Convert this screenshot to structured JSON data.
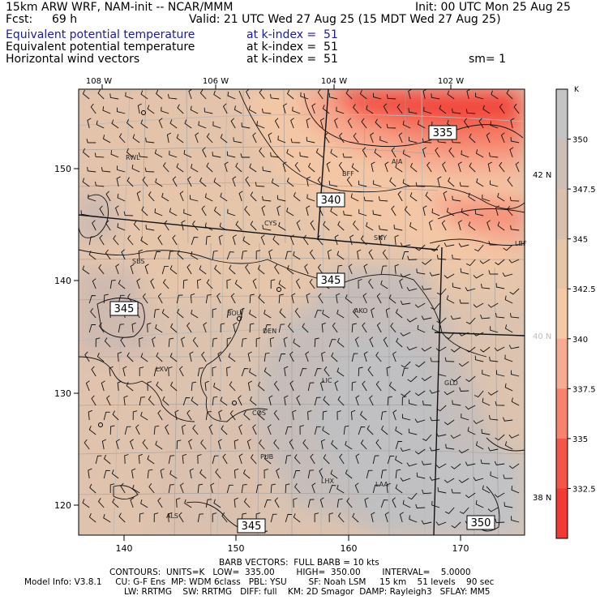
{
  "header": {
    "model": "15km ARW WRF, NAM-init -- NCAR/MMM",
    "init": "Init: 00 UTC Mon 25 Aug 25",
    "fcst_label": "Fcst:",
    "fcst_value": "69 h",
    "valid": "Valid: 21 UTC Wed 27 Aug 25 (15 MDT Wed 27 Aug 25)",
    "fields": [
      {
        "name": "Equivalent potential temperature",
        "level": "at k-index =  51"
      },
      {
        "name": "Equivalent potential temperature",
        "level": "at k-index =  51"
      },
      {
        "name": "Horizontal wind vectors",
        "level": "at k-index =  51"
      }
    ],
    "smoothing": "sm= 1"
  },
  "top_lon_labels": [
    "108 W",
    "106 W",
    "104 W",
    "102 W"
  ],
  "right_lat_labels": [
    "42 N",
    "40 N",
    "38 N"
  ],
  "x_ticks": [
    "140",
    "150",
    "160",
    "170"
  ],
  "y_ticks": [
    "150",
    "140",
    "130",
    "120"
  ],
  "cities": [
    "RWL",
    "BFF",
    "AIA",
    "CYS",
    "SNY",
    "LBF",
    "SBS",
    "BOU",
    "AKO",
    "DEN",
    "LXV",
    "LIC",
    "GLD",
    "COS",
    "PUB",
    "LHX",
    "LAA",
    "ALS"
  ],
  "contour_labels": [
    "335",
    "340",
    "345",
    "345",
    "345",
    "350"
  ],
  "colorbar": {
    "unit": "K",
    "labels": [
      "350",
      "347.5",
      "345",
      "342.5",
      "340",
      "337.5",
      "335",
      "332.5"
    ],
    "colors": [
      "#c4c4c4",
      "#cdbfb8",
      "#d8c0ad",
      "#e7c6a8",
      "#f5c9a5",
      "#f6ab92",
      "#f7836f",
      "#f35548",
      "#f23a33"
    ]
  },
  "footer": {
    "barb": "BARB VECTORS:  FULL BARB = 10 kts",
    "contours": "CONTOURS:  UNITS=K   LOW=  335.00        HIGH=  350.00        INTERVAL=    5.0000",
    "model_info_1": "Model Info: V3.8.1     CU: G-F Ens  MP: WDM 6class   PBL: YSU        SF: Noah LSM     15 km    51 levels    90 sec",
    "model_info_2": "LW: RRTMG    SW: RRTMG   DIFF: full    KM: 2D Smagor  DAMP: Rayleigh3   SFLAY: MM5"
  }
}
